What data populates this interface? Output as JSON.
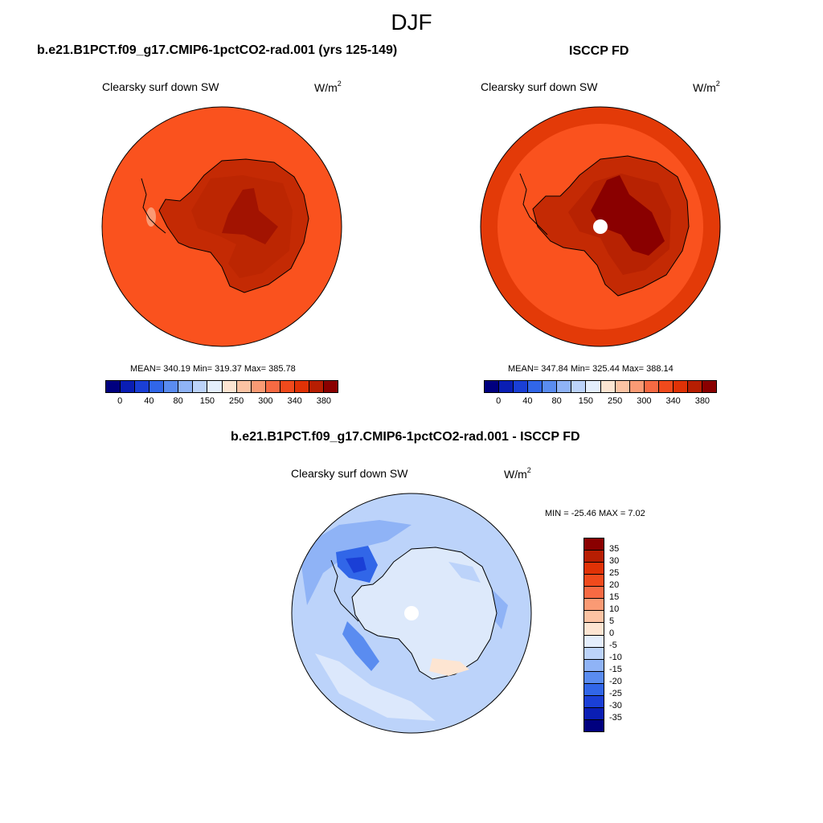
{
  "figure": {
    "title": "DJF"
  },
  "panels": [
    {
      "title": "b.e21.B1PCT.f09_g17.CMIP6-1pctCO2-rad.001 (yrs 125-149)",
      "variable": "Clearsky surf down SW",
      "units_base": "W/m",
      "units_exp": "2",
      "stats": "MEAN= 340.19  Min= 319.37  Max= 385.78",
      "colorbar_ticks": [
        "0",
        "40",
        "80",
        "150",
        "250",
        "300",
        "340",
        "380"
      ]
    },
    {
      "title": "ISCCP FD",
      "variable": "Clearsky surf down SW",
      "units_base": "W/m",
      "units_exp": "2",
      "stats": "MEAN= 347.84  Min= 325.44  Max= 388.14",
      "colorbar_ticks": [
        "0",
        "40",
        "80",
        "150",
        "250",
        "300",
        "340",
        "380"
      ]
    },
    {
      "title": "b.e21.B1PCT.f09_g17.CMIP6-1pctCO2-rad.001 - ISCCP FD",
      "variable": "Clearsky surf down SW",
      "units_base": "W/m",
      "units_exp": "2",
      "stats": "MIN = -25.46 MAX =   7.02",
      "colorbar_ticks": [
        "35",
        "30",
        "25",
        "20",
        "15",
        "10",
        "5",
        "0",
        "-5",
        "-10",
        "-15",
        "-20",
        "-25",
        "-30",
        "-35"
      ]
    }
  ],
  "colors": {
    "abs_scale": [
      "#00007f",
      "#0a1eb4",
      "#1a3fd6",
      "#3166e8",
      "#5a8cf0",
      "#8fb3f6",
      "#bcd3fa",
      "#e4eefc",
      "#fde5d2",
      "#fcc3a3",
      "#fa9a74",
      "#f76a43",
      "#f04a1c",
      "#e03206",
      "#b71e02",
      "#8a0000"
    ],
    "diff_scale": [
      "#8a0000",
      "#b71e02",
      "#e03206",
      "#f04a1c",
      "#f76a43",
      "#fa9a74",
      "#fcc3a3",
      "#fde5d2",
      "#e4eefc",
      "#bcd3fa",
      "#8fb3f6",
      "#5a8cf0",
      "#3166e8",
      "#1a3fd6",
      "#0a1eb4",
      "#00007f"
    ],
    "ocean_model": "#fa521e",
    "ocean_obs_outer": "#e33a08",
    "land_mid": "#c42a04",
    "land_high": "#8a0000",
    "diff_ocean": "#bcd3fa",
    "diff_land": "#dde9fb"
  }
}
